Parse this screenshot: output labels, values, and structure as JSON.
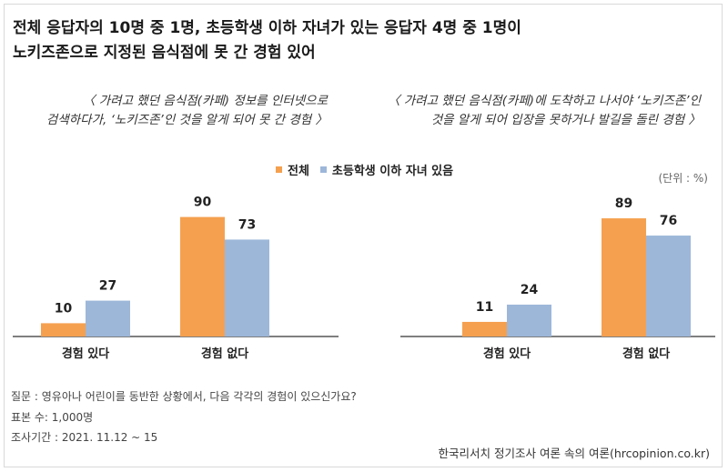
{
  "title_line1": "전체 응답자의 10명 중 1명, 초등학생 이하 자녀가 있는 응답자 4명 중 1명이",
  "title_line2": "노키즈존으로 지정된 음식점에 못 간 경험 있어",
  "left_sub_line1": "〈 가려고 했던 음식점(카페) 정보를 인터넷으로",
  "left_sub_line2": "검색하다가, ‘노키즈존’인 것을 알게 되어 못 간 경험 〉",
  "right_sub_line1": "〈 가려고 했던 음식점(카페)에 도착하고 나서야 ‘노키즈존’인",
  "right_sub_line2": "것을 알게 되어 입장을 못하거나 발길을 돌린 경험 〉",
  "unit": "(단위 : %)",
  "notes": {
    "question": "질문 : 영유아나 어린이를 동반한 상황에서, 다음 각각의 경험이 있으신가요?",
    "sample": "표본 수: 1,000명",
    "period": "조사기간 : 2021. 11.12 ~ 15"
  },
  "source": "한국리서치 정기조사 여론 속의 여론(hrcopinion.co.kr)",
  "colors": {
    "total": "#f5a04f",
    "parents": "#9db7d9"
  },
  "chart_data": {
    "type": "bar",
    "ylim": [
      0,
      100
    ],
    "legend": "top",
    "series_names": [
      "전체",
      "초등학생 이하 자녀 있음"
    ],
    "panels": [
      {
        "categories": [
          "경험 있다",
          "경험 없다"
        ],
        "series": [
          {
            "name": "전체",
            "values": [
              10,
              90
            ]
          },
          {
            "name": "초등학생 이하 자녀 있음",
            "values": [
              27,
              73
            ]
          }
        ]
      },
      {
        "categories": [
          "경험 있다",
          "경험 없다"
        ],
        "series": [
          {
            "name": "전체",
            "values": [
              11,
              89
            ]
          },
          {
            "name": "초등학생 이하 자녀 있음",
            "values": [
              24,
              76
            ]
          }
        ]
      }
    ]
  }
}
